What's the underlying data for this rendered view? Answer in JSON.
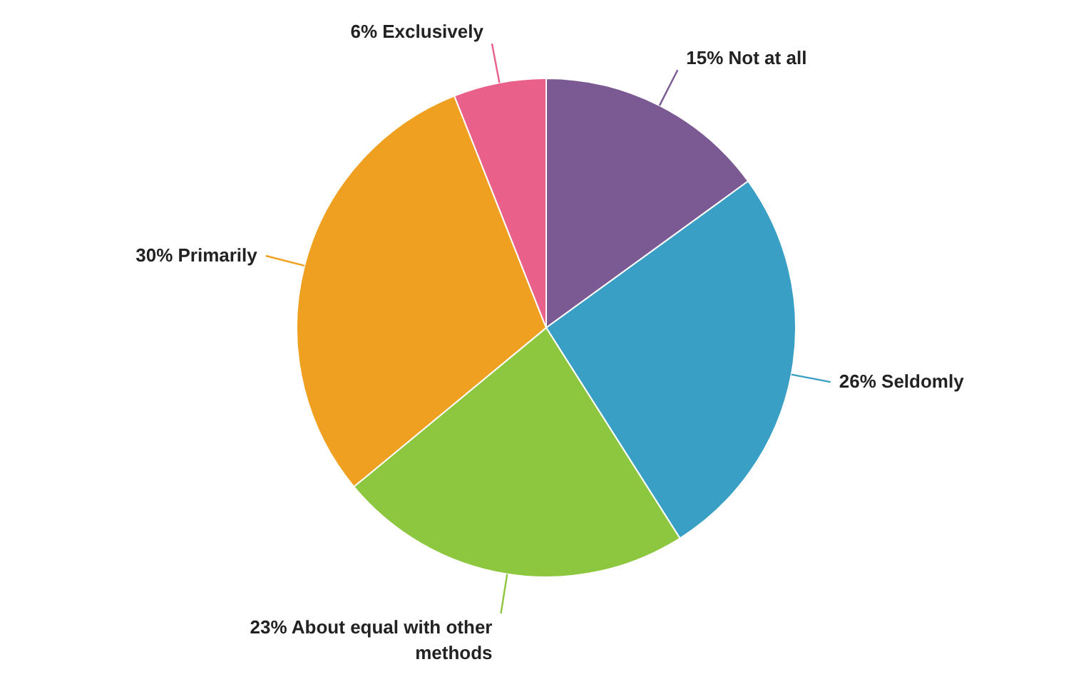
{
  "chart_data": {
    "type": "pie",
    "categories": [
      "Not at all",
      "Seldomly",
      "About equal with other methods",
      "Primarily",
      "Exclusively"
    ],
    "values": [
      15,
      26,
      23,
      30,
      6
    ],
    "value_labels": [
      "15%",
      "26%",
      "23%",
      "30%",
      "6%"
    ],
    "colors": [
      "#7b5a93",
      "#3a9fc5",
      "#8dc63f",
      "#f0a020",
      "#e9608a"
    ]
  }
}
